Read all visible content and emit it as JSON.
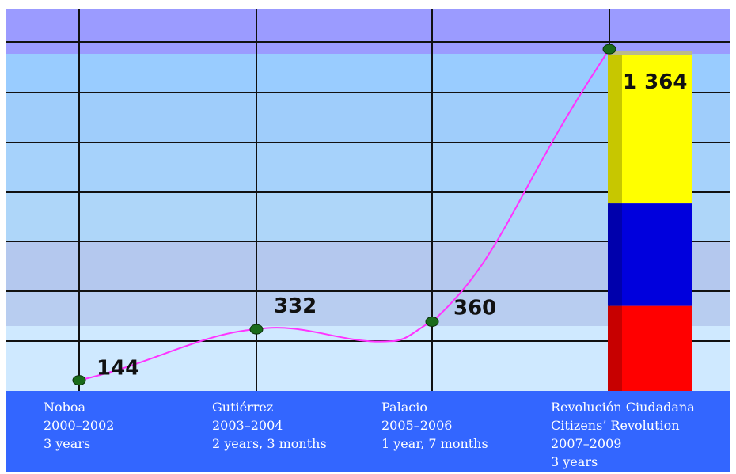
{
  "chart_data": {
    "type": "line",
    "title": "",
    "xlabel": "",
    "ylabel": "",
    "ylim": [
      0,
      1450
    ],
    "grid": true,
    "categories": [
      [
        "Noboa",
        "2000–2002",
        "3 years"
      ],
      [
        "Gutiérrez",
        "2003–2004",
        "2 years, 3 months"
      ],
      [
        "Palacio",
        "2005–2006",
        "1 year, 7 months"
      ],
      [
        "Revolución Ciudadana",
        "Citizens’ Revolution",
        "2007–2009",
        "3 years"
      ]
    ],
    "series": [
      {
        "values": [
          144,
          332,
          360,
          1364
        ]
      }
    ],
    "value_labels": [
      "144",
      "332",
      "360",
      "1 364"
    ],
    "colors": {
      "line": "#ff33ff",
      "marker": "#1a6b1a",
      "band_top": "#9b9bff",
      "bands": [
        "#99ccff",
        "#9fcdfb",
        "#a6d2fb",
        "#aed6f9",
        "#b4c8ee",
        "#b8cdf0",
        "#cfe9ff"
      ],
      "category_band": "#3366ff",
      "flag": [
        "#ffff00",
        "#0000dd",
        "#ff0000"
      ]
    }
  }
}
